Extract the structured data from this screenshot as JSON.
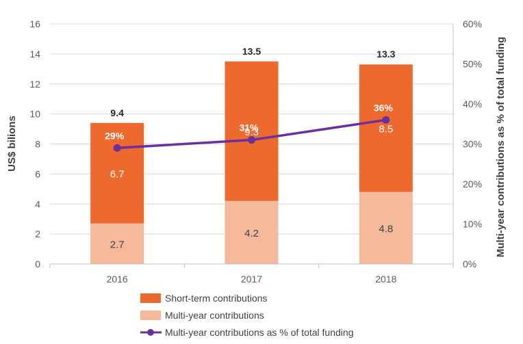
{
  "chart_data": {
    "type": "bar",
    "stacked": true,
    "categories": [
      "2016",
      "2017",
      "2018"
    ],
    "series": [
      {
        "name": "Multi-year contributions",
        "values": [
          2.7,
          4.2,
          4.8
        ],
        "color": "#F4B99B",
        "label_color": "#404040"
      },
      {
        "name": "Short-term contributions",
        "values": [
          6.7,
          9.3,
          8.5
        ],
        "color": "#EC6A2E",
        "label_color": "#ffffff"
      }
    ],
    "totals": [
      9.4,
      13.5,
      13.3
    ],
    "line_series": {
      "name": "Multi-year contributions as % of total funding",
      "values": [
        29,
        31,
        36
      ],
      "labels": [
        "29%",
        "31%",
        "36%"
      ],
      "color": "#6B2FA0",
      "axis": "right"
    },
    "ylabel": "US$ bilions",
    "y2label": "Multi-year contributions as % of total funding",
    "ylim": [
      0,
      16
    ],
    "yticks": [
      "0",
      "2",
      "4",
      "6",
      "8",
      "10",
      "12",
      "14",
      "16"
    ],
    "y2lim": [
      0,
      60
    ],
    "y2ticks": [
      "0%",
      "10%",
      "20%",
      "30%",
      "40%",
      "50%",
      "60%"
    ],
    "grid": true,
    "legend": {
      "placement": "bottom",
      "entries": [
        "Short-term contributions",
        "Multi-year contributions",
        "Multi-year contributions as % of total funding"
      ]
    }
  }
}
